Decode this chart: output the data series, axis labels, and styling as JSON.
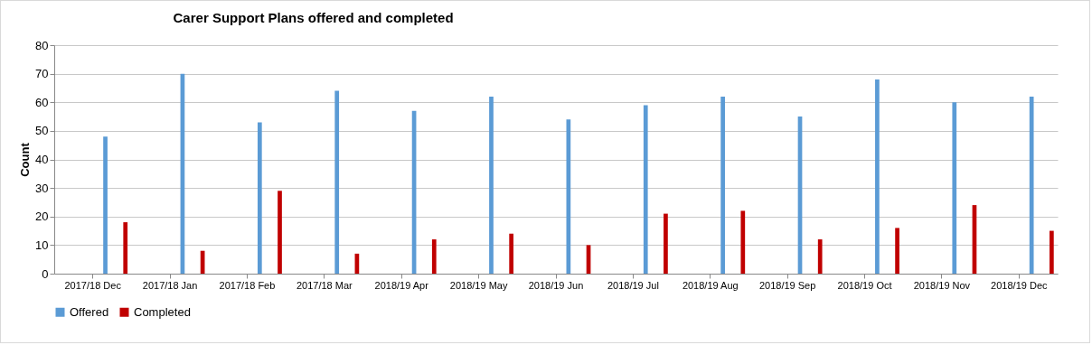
{
  "chart_data": {
    "type": "bar",
    "title": "Carer Support Plans offered and completed",
    "ylabel": "Count",
    "categories": [
      "2017/18 Dec",
      "2017/18 Jan",
      "2017/18 Feb",
      "2017/18 Mar",
      "2018/19 Apr",
      "2018/19 May",
      "2018/19 Jun",
      "2018/19 Jul",
      "2018/19 Aug",
      "2018/19 Sep",
      "2018/19 Oct",
      "2018/19 Nov",
      "2018/19 Dec"
    ],
    "series": [
      {
        "name": "Offered",
        "color": "#5b9bd5",
        "values": [
          48,
          70,
          53,
          64,
          57,
          62,
          54,
          59,
          62,
          55,
          68,
          60,
          62
        ]
      },
      {
        "name": "Completed",
        "color": "#c00000",
        "values": [
          18,
          8,
          29,
          7,
          12,
          14,
          10,
          21,
          22,
          12,
          16,
          24,
          15
        ]
      }
    ],
    "ylim": [
      0,
      80
    ],
    "yticks": [
      0,
      10,
      20,
      30,
      40,
      50,
      60,
      70,
      80
    ],
    "grid": "y",
    "legend": "bottom"
  }
}
